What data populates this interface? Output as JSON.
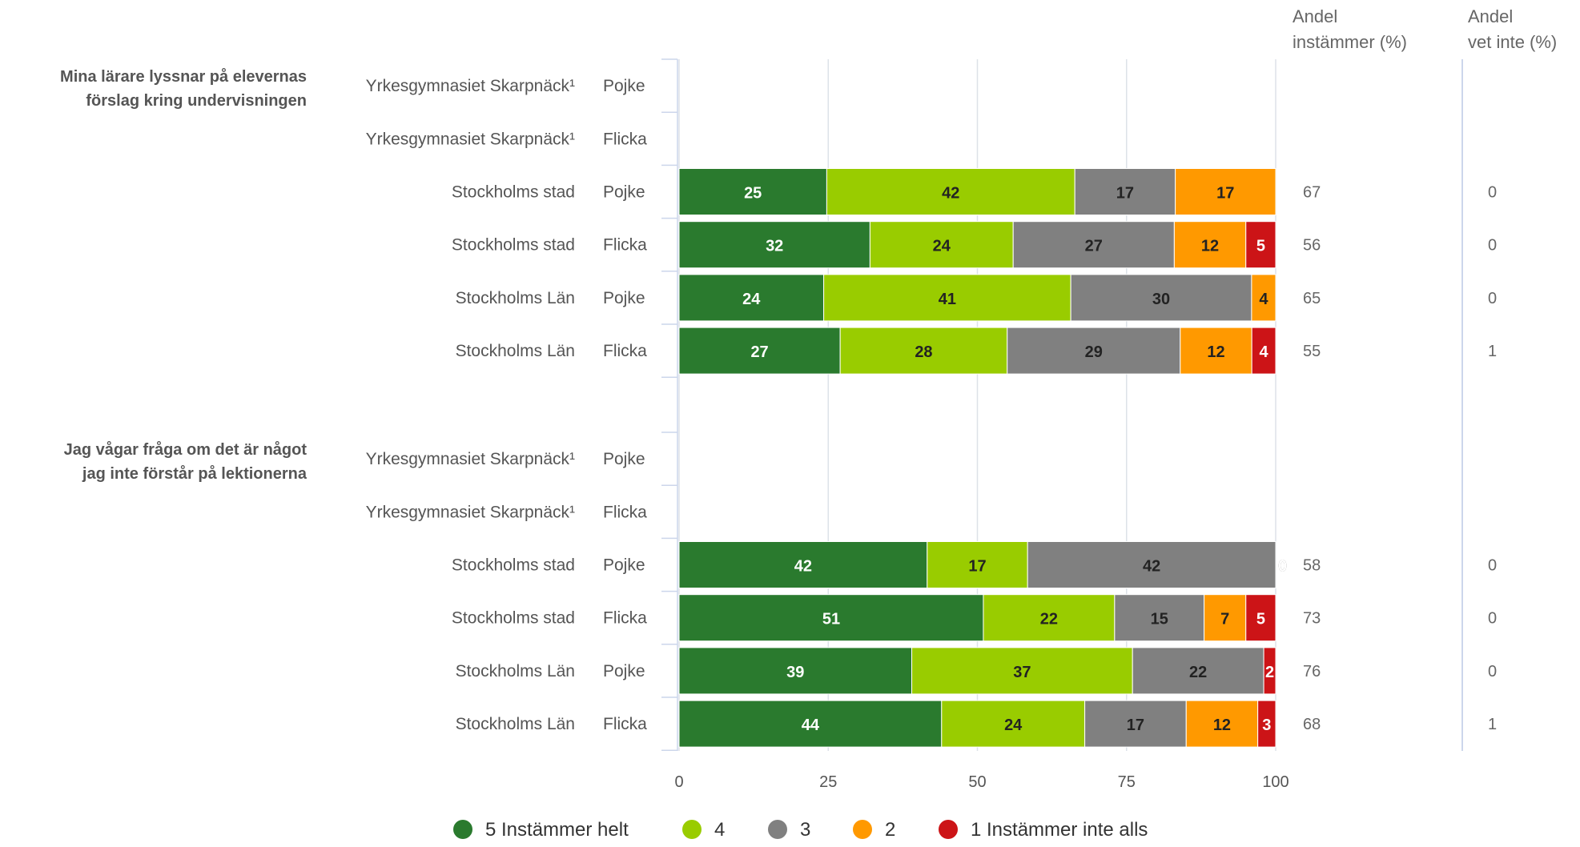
{
  "chart_data": {
    "type": "bar",
    "stacked": true,
    "orientation": "horizontal",
    "xlim": [
      0,
      100
    ],
    "xticks": [
      0,
      25,
      50,
      75,
      100
    ],
    "grid": true,
    "legend_position": "bottom",
    "headers": {
      "share_agree": [
        "Andel",
        "instämmer (%)"
      ],
      "share_dont_know": [
        "Andel",
        "vet inte (%)"
      ]
    },
    "legend": [
      {
        "name": "5 Instämmer helt",
        "color": "#2a7a2e"
      },
      {
        "name": "4",
        "color": "#99cc00"
      },
      {
        "name": "3",
        "color": "#808080"
      },
      {
        "name": "2",
        "color": "#ff9900"
      },
      {
        "name": "1 Instämmer inte alls",
        "color": "#cc1417"
      }
    ],
    "questions": [
      {
        "label": [
          "Mina lärare lyssnar på elevernas",
          "förslag kring undervisningen"
        ],
        "rows": [
          {
            "group": "Yrkesgymnasiet Skarpnäck¹",
            "gender": "Pojke",
            "values": null,
            "agree": "",
            "dont_know": ""
          },
          {
            "group": "Yrkesgymnasiet Skarpnäck¹",
            "gender": "Flicka",
            "values": null,
            "agree": "",
            "dont_know": ""
          },
          {
            "group": "Stockholms stad",
            "gender": "Pojke",
            "values": [
              25,
              42,
              17,
              17,
              0
            ],
            "agree": "67",
            "dont_know": "0"
          },
          {
            "group": "Stockholms stad",
            "gender": "Flicka",
            "values": [
              32,
              24,
              27,
              12,
              5
            ],
            "agree": "56",
            "dont_know": "0"
          },
          {
            "group": "Stockholms Län",
            "gender": "Pojke",
            "values": [
              24,
              41,
              30,
              4,
              0
            ],
            "agree": "65",
            "dont_know": "0"
          },
          {
            "group": "Stockholms Län",
            "gender": "Flicka",
            "values": [
              27,
              28,
              29,
              12,
              4
            ],
            "agree": "55",
            "dont_know": "1"
          }
        ]
      },
      {
        "label": [
          "Jag vågar fråga om det är något",
          "jag inte förstår på lektionerna"
        ],
        "rows": [
          {
            "group": "Yrkesgymnasiet Skarpnäck¹",
            "gender": "Pojke",
            "values": null,
            "agree": "",
            "dont_know": ""
          },
          {
            "group": "Yrkesgymnasiet Skarpnäck¹",
            "gender": "Flicka",
            "values": null,
            "agree": "",
            "dont_know": ""
          },
          {
            "group": "Stockholms stad",
            "gender": "Pojke",
            "values": [
              42,
              17,
              42,
              0,
              0
            ],
            "agree": "58",
            "dont_know": "0"
          },
          {
            "group": "Stockholms stad",
            "gender": "Flicka",
            "values": [
              51,
              22,
              15,
              7,
              5
            ],
            "agree": "73",
            "dont_know": "0"
          },
          {
            "group": "Stockholms Län",
            "gender": "Pojke",
            "values": [
              39,
              37,
              22,
              0,
              2
            ],
            "agree": "76",
            "dont_know": "0"
          },
          {
            "group": "Stockholms Län",
            "gender": "Flicka",
            "values": [
              44,
              24,
              17,
              12,
              3
            ],
            "agree": "68",
            "dont_know": "1"
          }
        ]
      }
    ]
  }
}
